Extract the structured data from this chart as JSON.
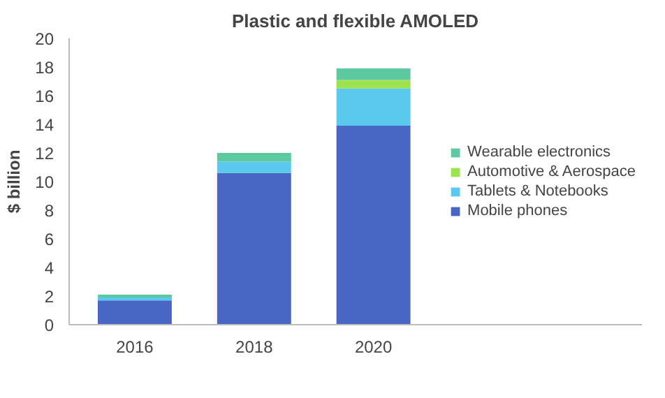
{
  "chart_data": {
    "type": "bar",
    "stacked": true,
    "title": "Plastic and flexible AMOLED",
    "ylabel": "$ billion",
    "categories": [
      "2016",
      "2018",
      "2020"
    ],
    "series": [
      {
        "name": "Mobile phones",
        "color": "#4a66c4",
        "values": [
          1.7,
          10.6,
          13.9
        ]
      },
      {
        "name": "Tablets & Notebooks",
        "color": "#5bc8ee",
        "values": [
          0.2,
          0.8,
          2.6
        ]
      },
      {
        "name": "Automotive & Aerospace",
        "color": "#9de24f",
        "values": [
          0,
          0,
          0.6
        ]
      },
      {
        "name": "Wearable electronics",
        "color": "#5cc9a0",
        "values": [
          0.2,
          0.6,
          0.8
        ]
      }
    ],
    "ylim": [
      0,
      20
    ],
    "yticks": [
      0,
      2,
      4,
      6,
      8,
      10,
      12,
      14,
      16,
      18,
      20
    ],
    "grid": false,
    "legend": "right"
  }
}
